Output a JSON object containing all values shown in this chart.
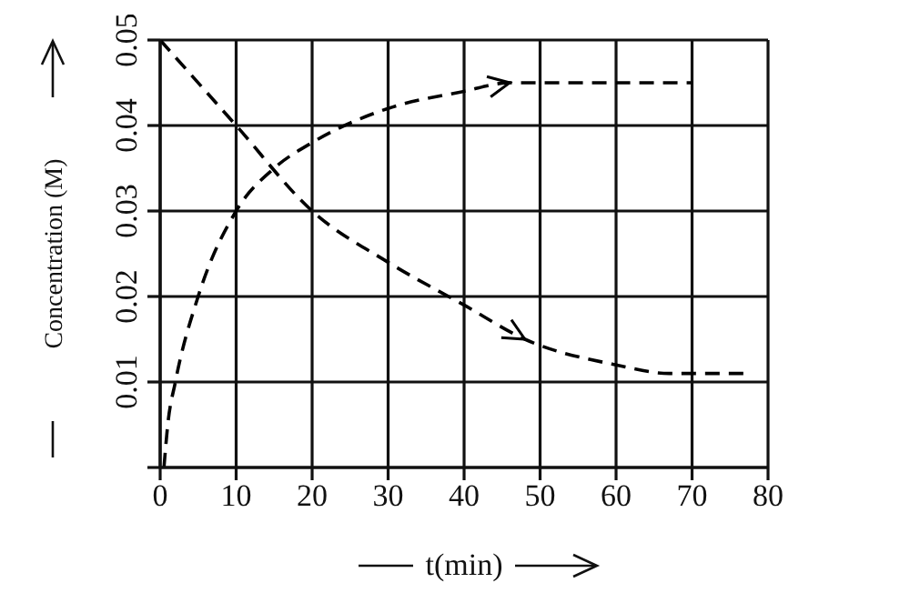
{
  "chart_data": {
    "type": "line",
    "xlabel": "t(min)",
    "ylabel": "Concentration (M)",
    "xlim": [
      0,
      80
    ],
    "xticks": [
      0,
      10,
      20,
      30,
      40,
      50,
      60,
      70,
      80
    ],
    "ylim": [
      0,
      0.05
    ],
    "yticks": [
      {
        "value": 0,
        "label": null
      },
      0.01,
      0.02,
      0.03,
      0.04,
      0.05
    ],
    "grid": true,
    "line_style": "dashed",
    "legend": false,
    "series": [
      {
        "color": "#000000",
        "x": [
          0,
          10,
          20,
          30,
          40,
          48,
          60,
          67,
          77
        ],
        "values": [
          0.05,
          0.04,
          0.03,
          0.024,
          0.019,
          0.015,
          0.012,
          0.011,
          0.011
        ]
      },
      {
        "color": "#000000",
        "x": [
          0.5,
          1,
          2,
          5,
          10,
          15,
          20,
          30,
          40,
          46,
          70
        ],
        "values": [
          0,
          0.005,
          0.01,
          0.02,
          0.03,
          0.035,
          0.038,
          0.042,
          0.044,
          0.045,
          0.045
        ]
      }
    ]
  }
}
